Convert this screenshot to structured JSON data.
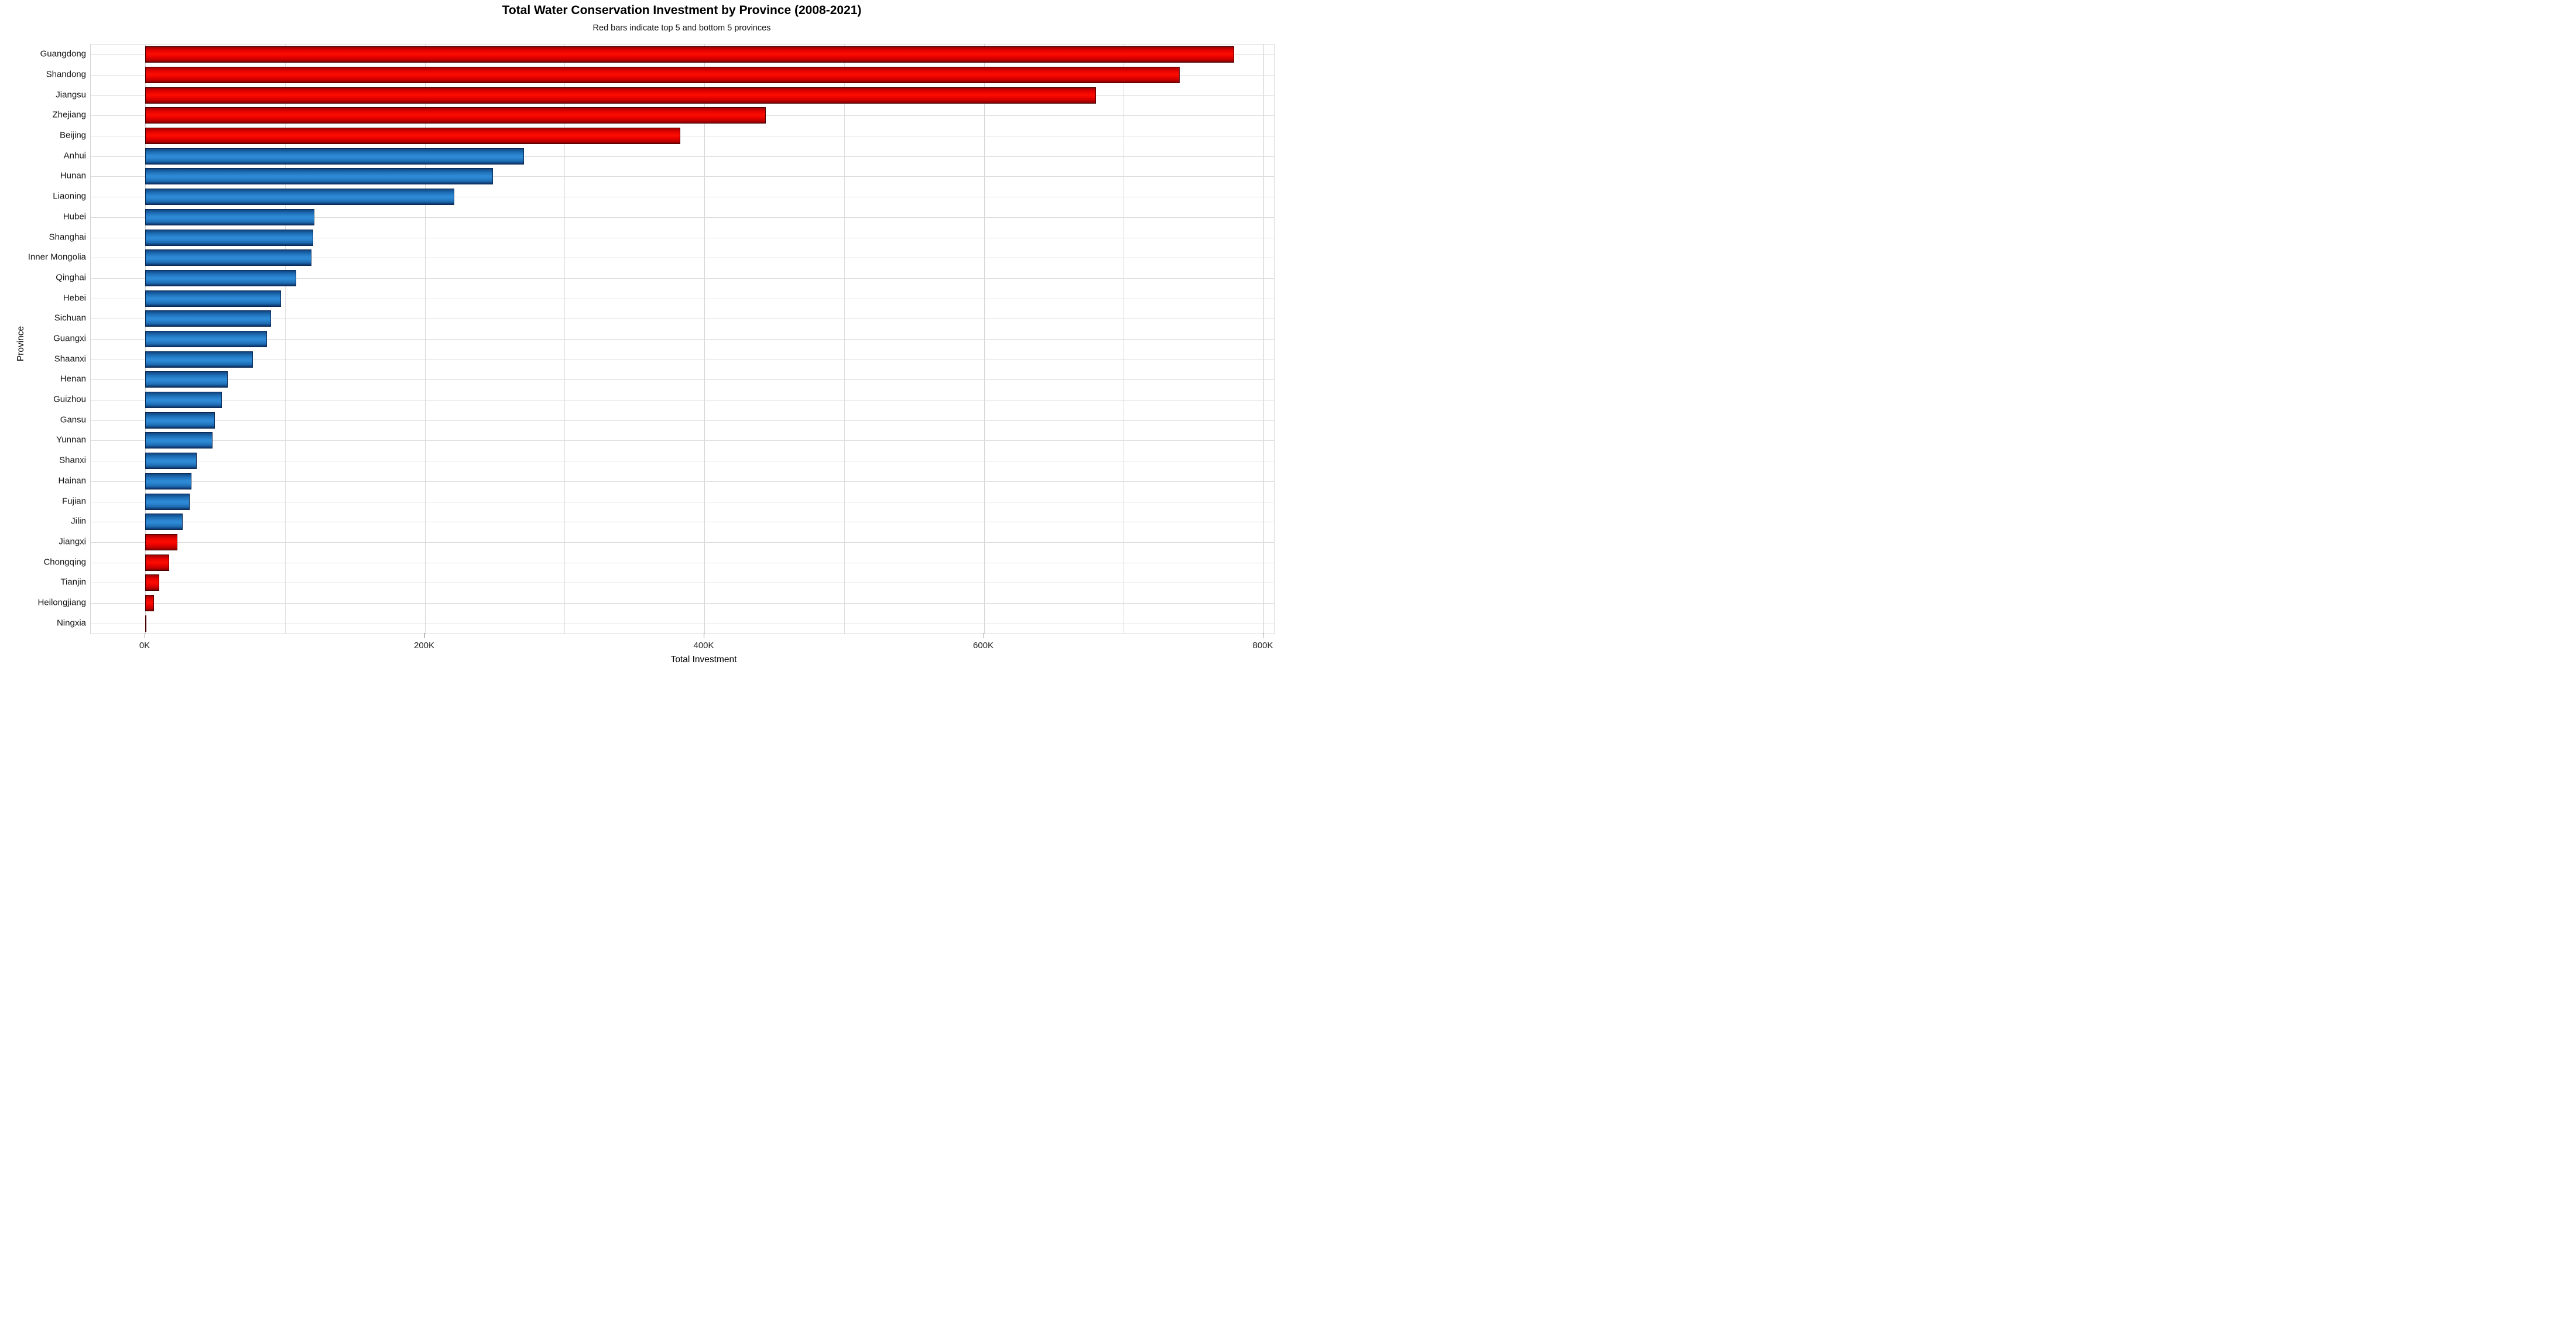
{
  "header": {
    "title": "Total Water Conservation Investment by Province (2008-2021)",
    "subtitle": "Red bars indicate top 5 and bottom 5 provinces"
  },
  "axes": {
    "x_title": "Total Investment",
    "y_title": "Province",
    "x_tick_labels": [
      "0K",
      "200K",
      "400K",
      "600K",
      "800K"
    ]
  },
  "colors": {
    "top_bottom_highlight": "#ee0000",
    "default_bar": "#2e89d4",
    "grid": "#dcdcdc"
  },
  "chart_data": {
    "type": "bar",
    "orientation": "horizontal",
    "title": "Total Water Conservation Investment by Province (2008-2021)",
    "subtitle": "Red bars indicate top 5 and bottom 5 provinces",
    "xlabel": "Total Investment",
    "ylabel": "Province",
    "xlim": [
      0,
      800000
    ],
    "x_ticks": [
      0,
      200000,
      400000,
      600000,
      800000
    ],
    "x_minor_ticks": [
      100000,
      300000,
      500000,
      700000
    ],
    "grid": true,
    "legend": "none",
    "highlight_rule": "top 5 and bottom 5 provinces shown in red, others blue",
    "categories": [
      "Guangdong",
      "Shandong",
      "Jiangsu",
      "Zhejiang",
      "Beijing",
      "Anhui",
      "Hunan",
      "Liaoning",
      "Hubei",
      "Shanghai",
      "Inner Mongolia",
      "Qinghai",
      "Hebei",
      "Sichuan",
      "Guangxi",
      "Shaanxi",
      "Henan",
      "Guizhou",
      "Gansu",
      "Yunnan",
      "Shanxi",
      "Hainan",
      "Fujian",
      "Jilin",
      "Jiangxi",
      "Chongqing",
      "Tianjin",
      "Heilongjiang",
      "Ningxia"
    ],
    "values": [
      779000,
      740000,
      680000,
      444000,
      383000,
      271000,
      249000,
      221000,
      121000,
      120000,
      119000,
      108000,
      97000,
      90000,
      87000,
      77000,
      59000,
      55000,
      50000,
      48000,
      37000,
      33000,
      32000,
      27000,
      23000,
      17000,
      10000,
      6300,
      500
    ],
    "bar_color_flags": [
      "red",
      "red",
      "red",
      "red",
      "red",
      "blue",
      "blue",
      "blue",
      "blue",
      "blue",
      "blue",
      "blue",
      "blue",
      "blue",
      "blue",
      "blue",
      "blue",
      "blue",
      "blue",
      "blue",
      "blue",
      "blue",
      "blue",
      "blue",
      "red",
      "red",
      "red",
      "red",
      "red"
    ]
  }
}
